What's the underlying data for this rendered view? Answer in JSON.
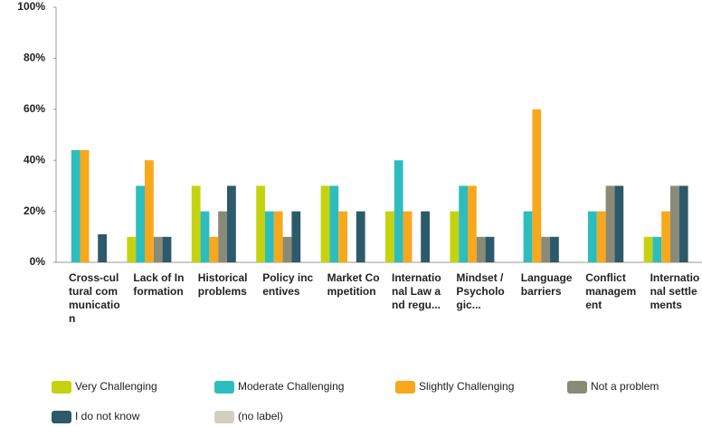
{
  "chart_data": {
    "type": "bar",
    "categories": [
      "Cross-cultural communication",
      "Lack of Information",
      "Historical problems",
      "Policy incentives",
      "Market Competition",
      "International Law and regu...",
      "Mindset / Psychologic...",
      "Language barriers",
      "Conflict management",
      "International settlements"
    ],
    "series": [
      {
        "name": "Very Challenging",
        "color": "#c5d30f",
        "values": [
          0,
          10,
          30,
          30,
          30,
          20,
          20,
          0,
          0,
          10
        ]
      },
      {
        "name": "Moderate Challenging",
        "color": "#2dbdbf",
        "values": [
          44,
          30,
          20,
          20,
          30,
          40,
          30,
          20,
          20,
          10
        ]
      },
      {
        "name": "Slightly Challenging",
        "color": "#f7a81c",
        "values": [
          44,
          40,
          10,
          20,
          20,
          20,
          30,
          60,
          20,
          20
        ]
      },
      {
        "name": "Not a problem",
        "color": "#8a8a78",
        "values": [
          0,
          10,
          20,
          10,
          0,
          0,
          10,
          10,
          30,
          30
        ]
      },
      {
        "name": "I do not know",
        "color": "#2d5a6b",
        "values": [
          11,
          10,
          30,
          20,
          20,
          20,
          10,
          10,
          30,
          30
        ]
      },
      {
        "name": "(no label)",
        "color": "#d2cfc0",
        "values": [
          0,
          0,
          0,
          0,
          0,
          0,
          0,
          0,
          0,
          0
        ]
      }
    ],
    "ylim": [
      0,
      100
    ],
    "yticks": [
      {
        "value": 0,
        "label": "0%"
      },
      {
        "value": 20,
        "label": "20%"
      },
      {
        "value": 40,
        "label": "40%"
      },
      {
        "value": 60,
        "label": "60%"
      },
      {
        "value": 80,
        "label": "80%"
      },
      {
        "value": 100,
        "label": "100%"
      }
    ],
    "grid": false
  }
}
